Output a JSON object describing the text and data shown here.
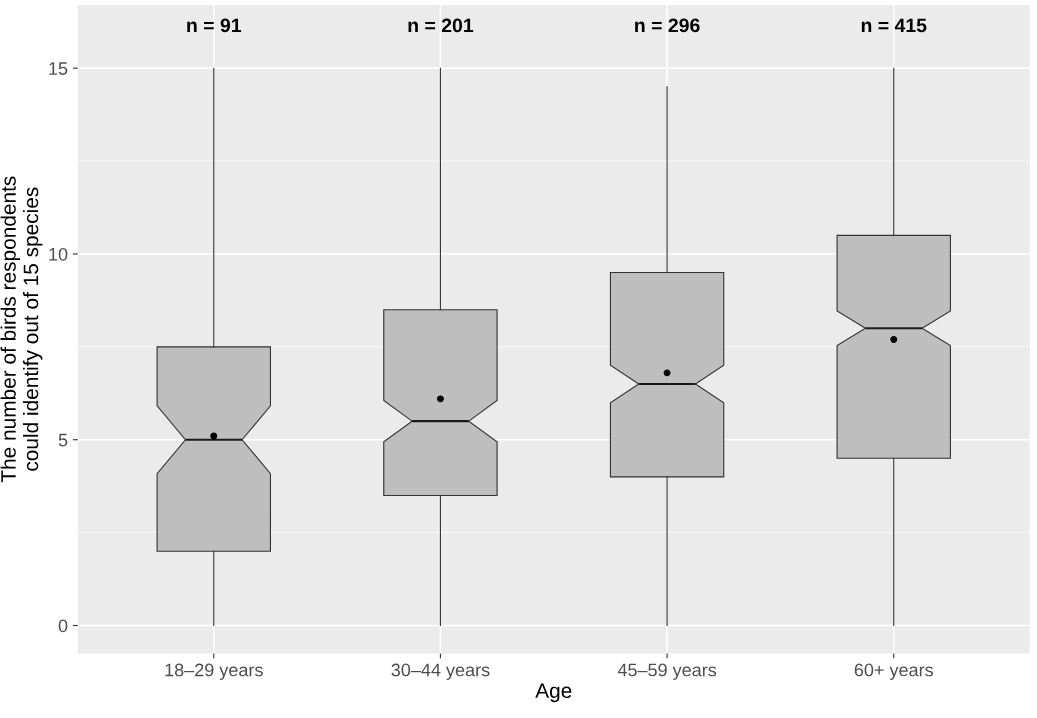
{
  "chart_data": {
    "type": "box",
    "xlabel": "Age",
    "ylabel": "The number of birds respondents\ncould identify out of 15 species",
    "categories": [
      "18–29 years",
      "30–44 years",
      "45–59 years",
      "60+ years"
    ],
    "color": "#bebebe",
    "boxes": [
      {
        "low": 0,
        "q1": 2.0,
        "median": 5.0,
        "q3": 7.5,
        "high": 15,
        "mean": 5.1
      },
      {
        "low": 0,
        "q1": 3.5,
        "median": 5.5,
        "q3": 8.5,
        "high": 15,
        "mean": 6.1
      },
      {
        "low": 0,
        "q1": 4.0,
        "median": 6.5,
        "q3": 9.5,
        "high": 14.5,
        "mean": 6.8
      },
      {
        "low": 0,
        "q1": 4.5,
        "median": 8.0,
        "q3": 10.5,
        "high": 15,
        "mean": 7.7
      }
    ],
    "annotations": [
      "n = 91",
      "n = 201",
      "n = 296",
      "n = 415"
    ],
    "ylim": [
      -0.75,
      16.7
    ],
    "yticks": [
      0,
      5,
      10,
      15
    ],
    "grid": true
  }
}
